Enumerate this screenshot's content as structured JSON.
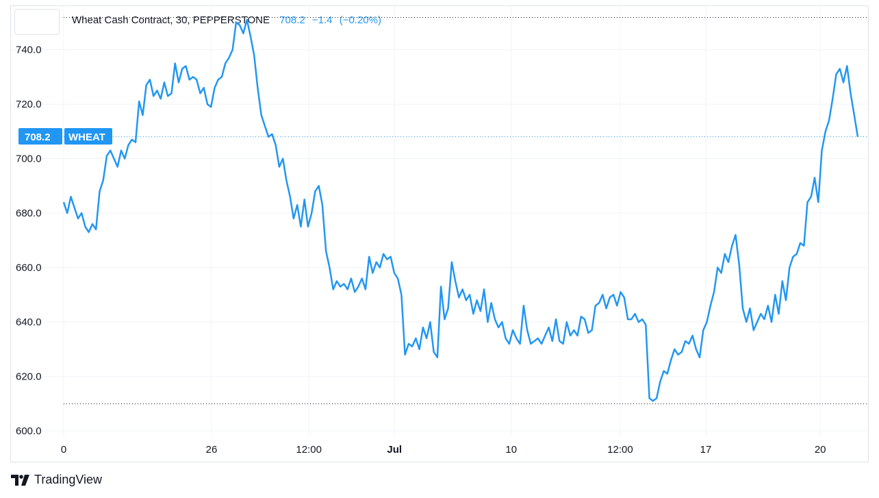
{
  "header": {
    "symbol_line": "Wheat Cash Contract, 30, PEPPERSTONE",
    "last": "708.2",
    "change": "−1.4",
    "change_pct": "(−0.20%)"
  },
  "price_tag": {
    "value": "708.2",
    "name": "WHEAT"
  },
  "footer": {
    "brand": "TradingView",
    "logo_icon": "tradingview-logo-icon"
  },
  "colors": {
    "line": "#2196f3",
    "grid": "#f0f3fa",
    "text": "#131722",
    "tag": "#2196f3"
  },
  "chart_data": {
    "type": "line",
    "title": "Wheat Cash Contract, 30, PEPPERSTONE",
    "ylim": [
      598,
      756
    ],
    "y_ticks": [
      600,
      620,
      640,
      660,
      680,
      700,
      720,
      740
    ],
    "y_tick_labels": [
      "600.0",
      "620.0",
      "640.0",
      "660.0",
      "680.0",
      "700.0",
      "720.0",
      "740.0"
    ],
    "x_tick_labels": [
      "0",
      "26",
      "12:00",
      "Jul",
      "10",
      "12:00",
      "17",
      "20"
    ],
    "x_tick_positions": [
      0,
      0.19,
      0.315,
      0.425,
      0.575,
      0.715,
      0.825,
      0.972
    ],
    "x_tick_bold": [
      false,
      false,
      false,
      true,
      false,
      false,
      false,
      false
    ],
    "range_high": 752,
    "range_low": 610,
    "last_value": 708.2,
    "series": [
      {
        "values": [
          684,
          680,
          686,
          682,
          678,
          680,
          675,
          673,
          676,
          674,
          688,
          692,
          701,
          703,
          700,
          697,
          703,
          700,
          705,
          707,
          706,
          721,
          716,
          727,
          729,
          723,
          725,
          722,
          728,
          723,
          724,
          735,
          728,
          733,
          734,
          729,
          730,
          729,
          724,
          726,
          720,
          719,
          726,
          729,
          730,
          735,
          737,
          740,
          750,
          749,
          746,
          751,
          745,
          738,
          726,
          716,
          712,
          708,
          709,
          705,
          697,
          700,
          692,
          686,
          678,
          683,
          675,
          685,
          675,
          680,
          688,
          690,
          683,
          666,
          660,
          652,
          655,
          653,
          654,
          652,
          656,
          651,
          653,
          656,
          652,
          664,
          658,
          662,
          660,
          665,
          663,
          664,
          658,
          656,
          650,
          628,
          632,
          631,
          634,
          630,
          638,
          634,
          640,
          629,
          627,
          653,
          641,
          645,
          662,
          655,
          649,
          652,
          648,
          650,
          643,
          648,
          644,
          652,
          640,
          647,
          641,
          638,
          640,
          634,
          632,
          637,
          634,
          632,
          646,
          637,
          632,
          633,
          634,
          632,
          635,
          638,
          633,
          641,
          633,
          632,
          640,
          635,
          637,
          635,
          642,
          641,
          636,
          637,
          646,
          647,
          650,
          645,
          649,
          650,
          646,
          651,
          649,
          641,
          641,
          643,
          640,
          641,
          639,
          612,
          611,
          612,
          618,
          622,
          621,
          626,
          630,
          628,
          629,
          633,
          632,
          635,
          630,
          627,
          637,
          640,
          646,
          651,
          660,
          658,
          665,
          662,
          668,
          672,
          661,
          645,
          640,
          645,
          637,
          640,
          643,
          641,
          646,
          640,
          650,
          643,
          655,
          648,
          660,
          664,
          665,
          669,
          668,
          684,
          686,
          693,
          684,
          703,
          710,
          714,
          722,
          731,
          733,
          728,
          734,
          724,
          716,
          708
        ]
      }
    ]
  }
}
